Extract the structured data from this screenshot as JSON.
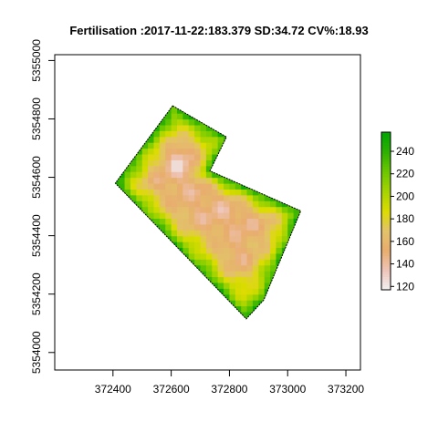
{
  "chart_data": {
    "type": "heatmap",
    "title": "Fertilisation :2017-11-22:183.379 SD:34.72 CV%:18.93",
    "xlabel": "",
    "ylabel": "",
    "xlim": [
      372200,
      373250
    ],
    "ylim": [
      5353940,
      5355020
    ],
    "x_ticks": [
      372400,
      372600,
      372800,
      373000,
      373200
    ],
    "x_tick_labels": [
      "372400",
      "372600",
      "372800",
      "373000",
      "373200"
    ],
    "y_ticks": [
      5354000,
      5354200,
      5354400,
      5354600,
      5354800,
      5355000
    ],
    "y_tick_labels": [
      "5354000",
      "5354200",
      "5354400",
      "5354600",
      "5354800",
      "5355000"
    ],
    "grid": false,
    "field_boundary": [
      [
        372605,
        5354845
      ],
      [
        372790,
        5354738
      ],
      [
        372733,
        5354622
      ],
      [
        373045,
        5354485
      ],
      [
        372918,
        5354180
      ],
      [
        372858,
        5354115
      ],
      [
        372408,
        5354580
      ]
    ],
    "cell_size_m": 20,
    "value_peaks": [
      {
        "x": 372630,
        "y": 5354650,
        "value": 125
      },
      {
        "x": 372700,
        "y": 5354580,
        "value": 130
      },
      {
        "x": 372780,
        "y": 5354510,
        "value": 135
      },
      {
        "x": 372860,
        "y": 5354460,
        "value": 140
      },
      {
        "x": 372830,
        "y": 5354330,
        "value": 145
      },
      {
        "x": 372930,
        "y": 5354420,
        "value": 150
      },
      {
        "x": 372560,
        "y": 5354580,
        "value": 150
      },
      {
        "x": 372720,
        "y": 5354470,
        "value": 145
      },
      {
        "x": 372640,
        "y": 5354490,
        "value": 150
      },
      {
        "x": 372610,
        "y": 5354750,
        "value": 175
      }
    ],
    "edge_value": 245,
    "legend": {
      "position": "right",
      "min": 117,
      "max": 257,
      "ticks": [
        120,
        140,
        160,
        180,
        200,
        220,
        240
      ],
      "tick_labels": [
        "120",
        "140",
        "160",
        "180",
        "200",
        "220",
        "240"
      ],
      "colors": [
        "#f2f2f2",
        "#eec4b8",
        "#e8ad6e",
        "#e3c26a",
        "#dcdc00",
        "#a6d400",
        "#6cc800",
        "#2eb100",
        "#00a600"
      ]
    }
  }
}
